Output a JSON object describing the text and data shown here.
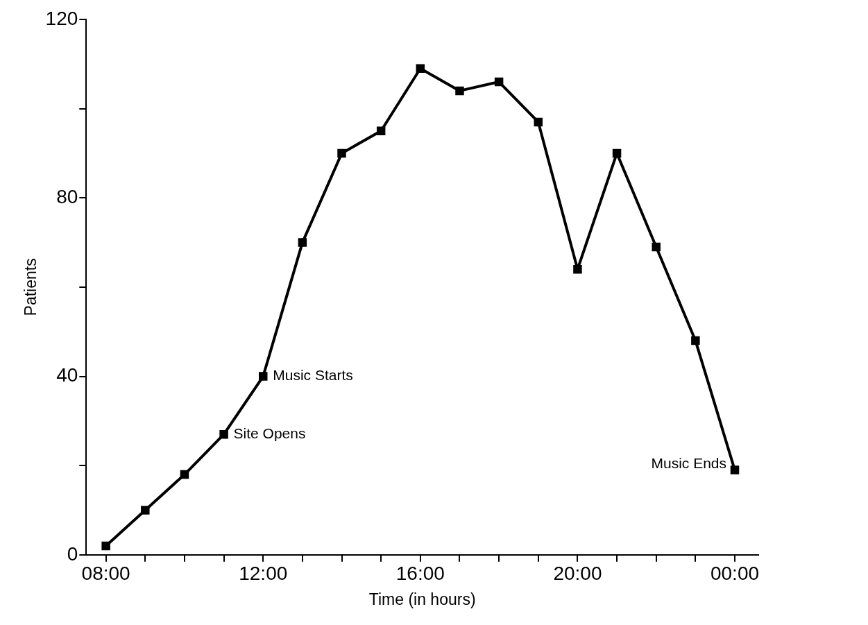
{
  "chart_data": {
    "type": "line",
    "xlabel": "Time (in hours)",
    "ylabel": "Patients",
    "x": [
      8,
      9,
      10,
      11,
      12,
      13,
      14,
      15,
      16,
      17,
      18,
      19,
      20,
      21,
      22,
      23,
      24
    ],
    "values": [
      2,
      10,
      18,
      27,
      40,
      70,
      90,
      95,
      109,
      104,
      106,
      97,
      64,
      90,
      69,
      48,
      19
    ],
    "color": "#000000",
    "marker": "square",
    "line_style": "solid",
    "grid": false,
    "legend": false,
    "xlim": [
      7.5,
      24.6
    ],
    "ylim": [
      0,
      120
    ],
    "xticks": [
      {
        "value": 8,
        "label": "08:00"
      },
      {
        "value": 9,
        "label": null
      },
      {
        "value": 10,
        "label": null
      },
      {
        "value": 11,
        "label": null
      },
      {
        "value": 12,
        "label": "12:00"
      },
      {
        "value": 13,
        "label": null
      },
      {
        "value": 14,
        "label": null
      },
      {
        "value": 15,
        "label": null
      },
      {
        "value": 16,
        "label": "16:00"
      },
      {
        "value": 17,
        "label": null
      },
      {
        "value": 18,
        "label": null
      },
      {
        "value": 19,
        "label": null
      },
      {
        "value": 20,
        "label": "20:00"
      },
      {
        "value": 21,
        "label": null
      },
      {
        "value": 22,
        "label": null
      },
      {
        "value": 23,
        "label": null
      },
      {
        "value": 24,
        "label": "00:00"
      }
    ],
    "yticks": [
      0,
      {
        "value": 20,
        "label": null
      },
      40,
      {
        "value": 60,
        "label": null
      },
      80,
      {
        "value": 100,
        "label": null
      },
      120
    ],
    "annotations": [
      {
        "text": "Site Opens",
        "x": 11,
        "y": 27
      },
      {
        "text": "Music Starts",
        "x": 12,
        "y": 40
      },
      {
        "text": "Music Ends",
        "x": 24,
        "y": 19
      }
    ]
  }
}
